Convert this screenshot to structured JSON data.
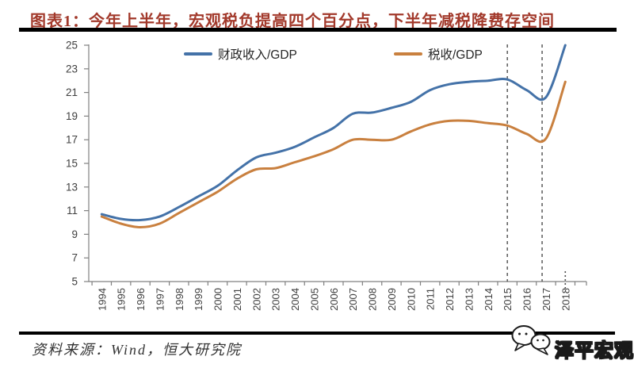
{
  "title": "图表1：今年上半年，宏观税负提高四个百分点，下半年减税降费存空间",
  "source_note": "资料来源：Wind，恒大研究院",
  "logo_text": "泽平宏观",
  "colors": {
    "title": "#a2392b",
    "axis": "#808080",
    "tick_label": "#404040",
    "dashed_line": "#4d4d4d",
    "rule": "#000000",
    "fiscal_line": "#4472a8",
    "tax_line": "#c9803f"
  },
  "chart_data": {
    "type": "line",
    "title": "图表1：今年上半年，宏观税负提高四个百分点，下半年减税降费存空间",
    "x_years": [
      "1994",
      "1995",
      "1996",
      "1997",
      "1998",
      "1999",
      "2000",
      "2001",
      "2002",
      "2003",
      "2004",
      "2005",
      "2006",
      "2007",
      "2008",
      "2009",
      "2010",
      "2011",
      "2012",
      "2013",
      "2014",
      "2015",
      "2016",
      "2017",
      "2018"
    ],
    "series": [
      {
        "name": "财政收入/GDP",
        "color": "#4472a8",
        "values": [
          10.7,
          10.3,
          10.2,
          10.5,
          11.3,
          12.2,
          13.1,
          14.4,
          15.5,
          15.9,
          16.4,
          17.2,
          18.0,
          19.2,
          19.3,
          19.7,
          20.2,
          21.2,
          21.7,
          21.9,
          22.0,
          22.1,
          21.2,
          20.6,
          25.0
        ]
      },
      {
        "name": "税收/GDP",
        "color": "#c9803f",
        "values": [
          10.5,
          9.9,
          9.6,
          9.9,
          10.8,
          11.7,
          12.6,
          13.7,
          14.5,
          14.6,
          15.1,
          15.6,
          16.2,
          17.0,
          17.0,
          17.0,
          17.7,
          18.3,
          18.6,
          18.6,
          18.4,
          18.2,
          17.5,
          17.1,
          21.9
        ]
      }
    ],
    "ylim": [
      5,
      25
    ],
    "yticks": [
      5,
      7,
      9,
      11,
      13,
      15,
      17,
      19,
      21,
      23,
      25
    ],
    "grid": false,
    "legend_position": "top",
    "dashed_vlines_x": [
      2015,
      2016.8
    ],
    "dotted_axis_mark_x": 2018
  }
}
